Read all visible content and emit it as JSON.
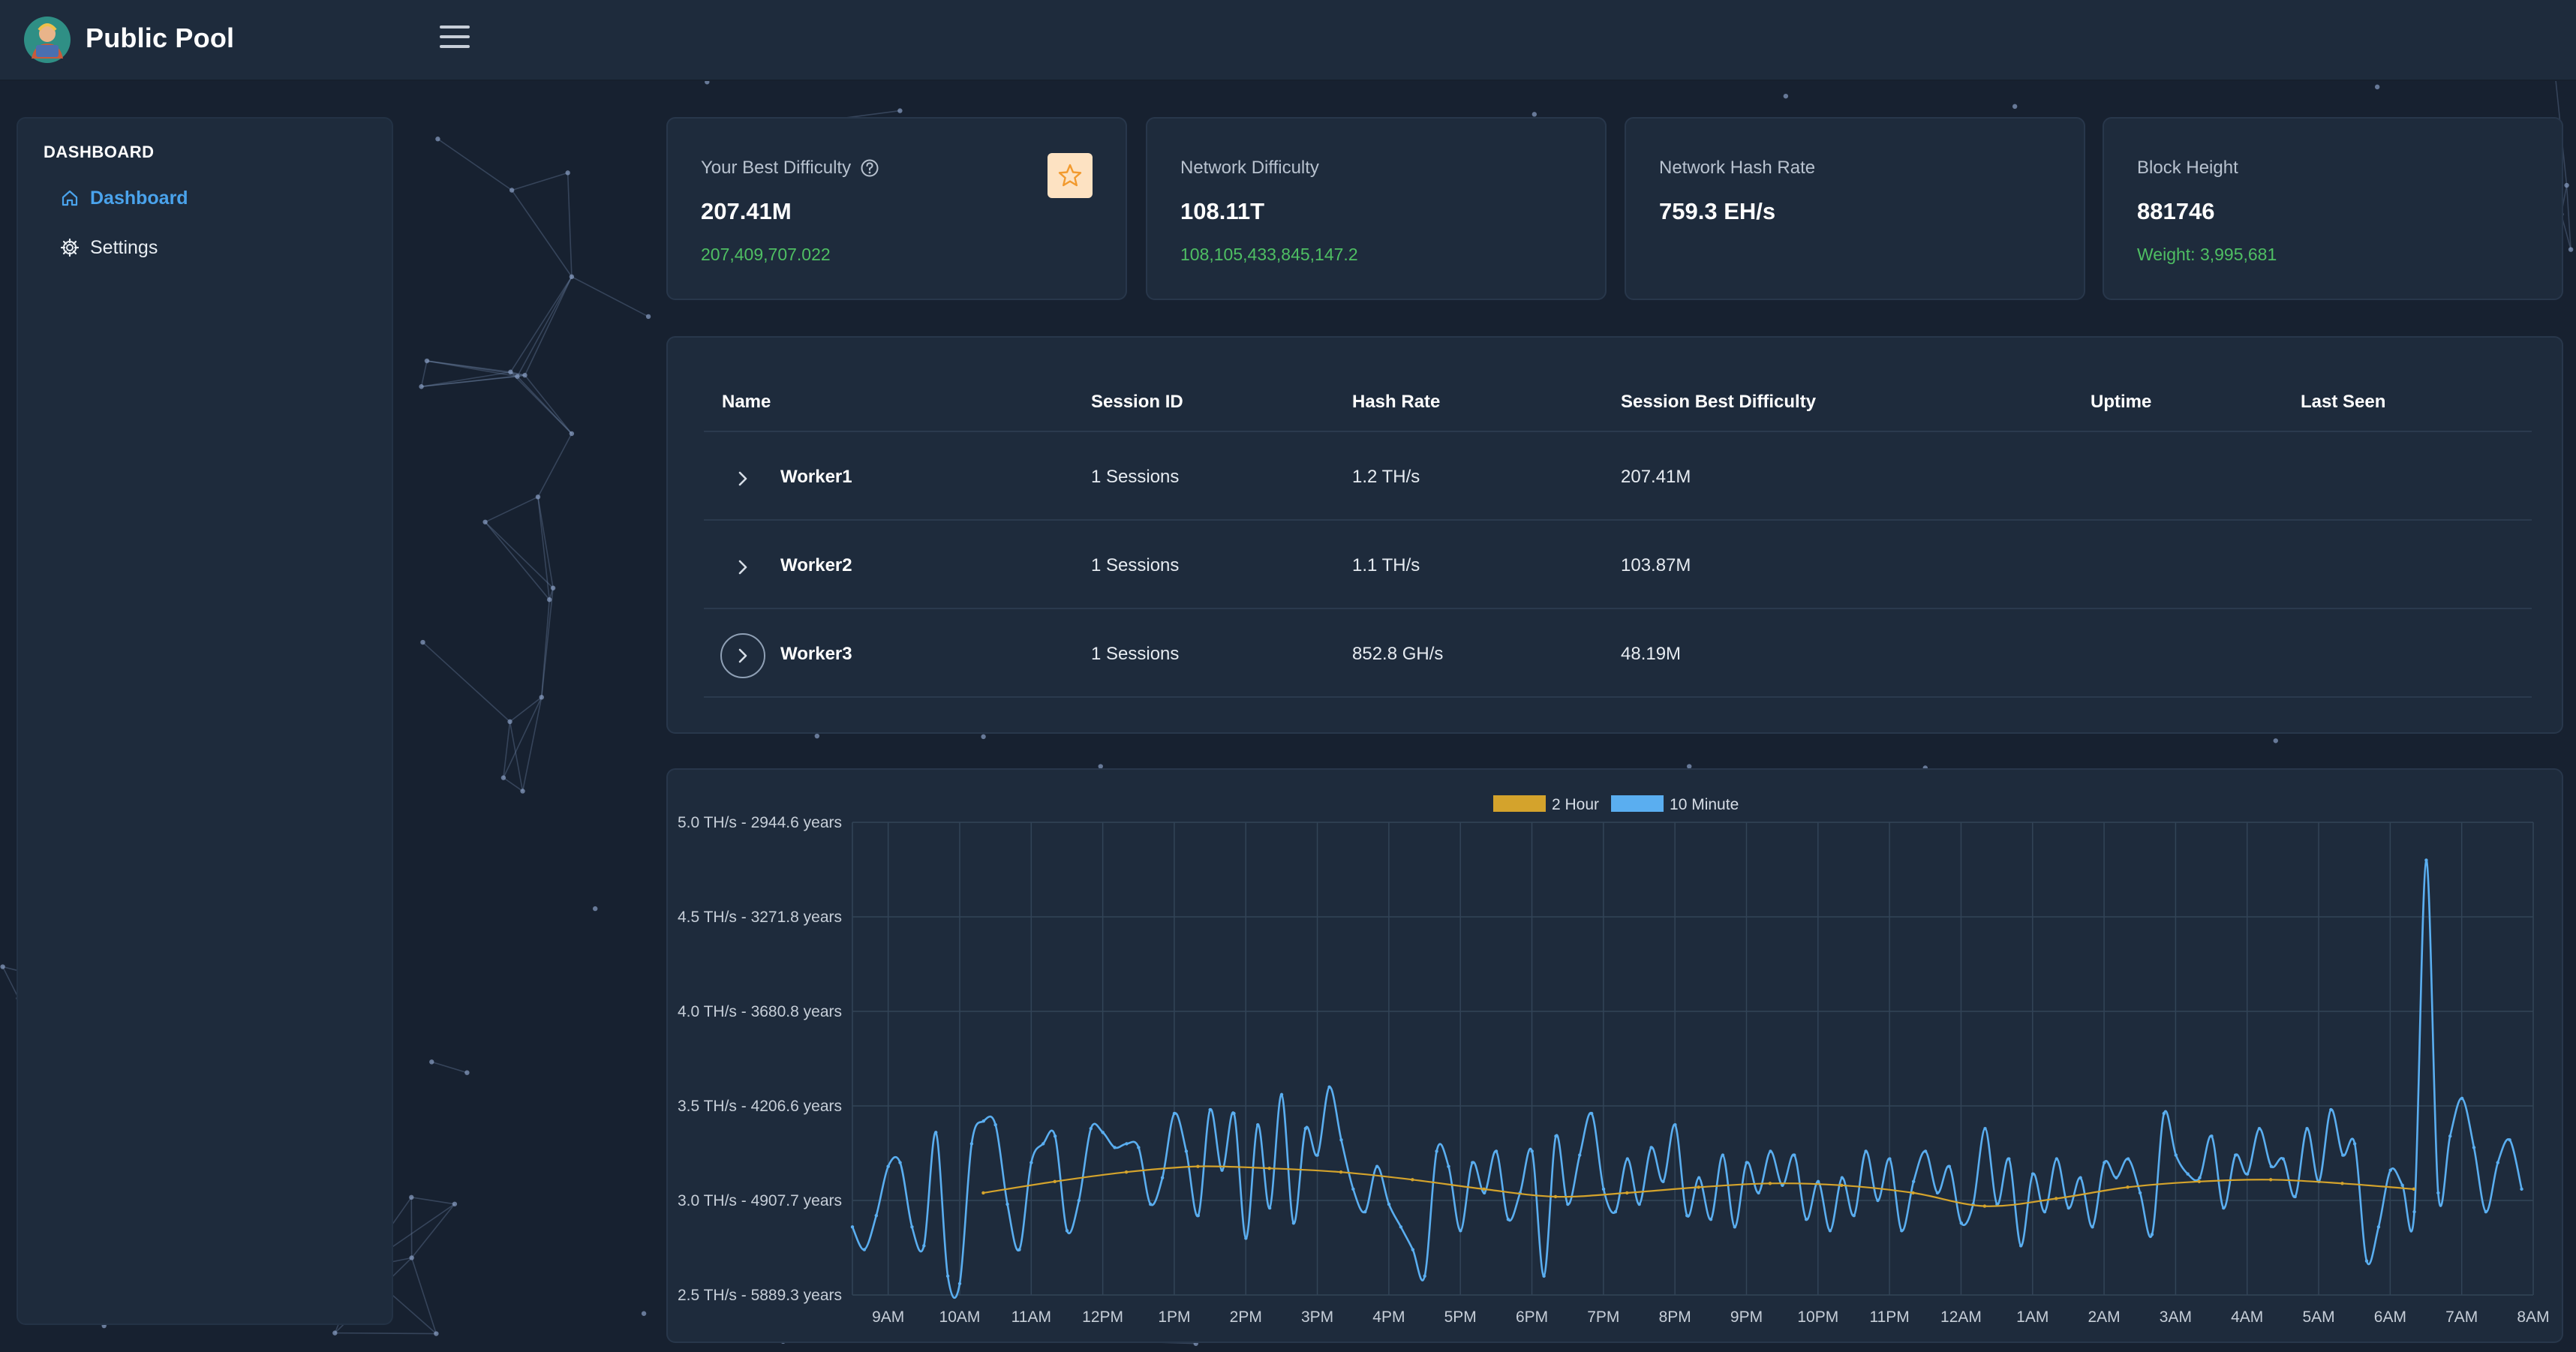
{
  "app": {
    "title": "Public Pool",
    "logo_icon": "public-pool-logo"
  },
  "sidebar": {
    "heading": "DASHBOARD",
    "items": [
      {
        "label": "Dashboard",
        "icon": "home-icon",
        "active": true
      },
      {
        "label": "Settings",
        "icon": "gear-icon",
        "active": false
      }
    ]
  },
  "cards": [
    {
      "label": "Your Best Difficulty",
      "value": "207.41M",
      "sub": "207,409,707.022",
      "has_help": true,
      "has_star": true
    },
    {
      "label": "Network Difficulty",
      "value": "108.11T",
      "sub": "108,105,433,845,147.2"
    },
    {
      "label": "Network Hash Rate",
      "value": "759.3 EH/s",
      "sub": ""
    },
    {
      "label": "Block Height",
      "value": "881746",
      "sub": "Weight: 3,995,681"
    }
  ],
  "workers_table": {
    "columns": [
      "Name",
      "Session ID",
      "Hash Rate",
      "Session Best Difficulty",
      "Uptime",
      "Last Seen"
    ],
    "rows": [
      {
        "name": "Worker1",
        "sessions": "1 Sessions",
        "hash_rate": "1.2 TH/s",
        "best_difficulty": "207.41M",
        "uptime": "",
        "last_seen": ""
      },
      {
        "name": "Worker2",
        "sessions": "1 Sessions",
        "hash_rate": "1.1 TH/s",
        "best_difficulty": "103.87M",
        "uptime": "",
        "last_seen": ""
      },
      {
        "name": "Worker3",
        "sessions": "1 Sessions",
        "hash_rate": "852.8 GH/s",
        "best_difficulty": "48.19M",
        "uptime": "",
        "last_seen": ""
      }
    ]
  },
  "colors": {
    "accent": "#4aa3ec",
    "positive": "#4fbf63",
    "series_2h": "#d4a32c",
    "series_10m": "#5aaef0",
    "star_bg": "#fde2c2",
    "star_fg": "#f29a2e"
  },
  "chart_data": {
    "type": "line",
    "legend_position": "top",
    "grid": true,
    "x_ticks": [
      "9AM",
      "10AM",
      "11AM",
      "12PM",
      "1PM",
      "2PM",
      "3PM",
      "4PM",
      "5PM",
      "6PM",
      "7PM",
      "8PM",
      "9PM",
      "10PM",
      "11PM",
      "12AM",
      "1AM",
      "2AM",
      "3AM",
      "4AM",
      "5AM",
      "6AM",
      "7AM",
      "8AM"
    ],
    "y_ticks": [
      {
        "value": 5.0,
        "label": "5.0 TH/s - 2944.6 years"
      },
      {
        "value": 4.5,
        "label": "4.5 TH/s - 3271.8 years"
      },
      {
        "value": 4.0,
        "label": "4.0 TH/s - 3680.8 years"
      },
      {
        "value": 3.5,
        "label": "3.5 TH/s - 4206.6 years"
      },
      {
        "value": 3.0,
        "label": "3.0 TH/s - 4907.7 years"
      },
      {
        "value": 2.5,
        "label": "2.5 TH/s - 5889.3 years"
      }
    ],
    "ylim": [
      2.5,
      5.0
    ],
    "x_hours": [
      8.5,
      32.0
    ],
    "series": [
      {
        "name": "2 Hour",
        "x": [
          10.33,
          11.33,
          12.33,
          13.33,
          14.33,
          15.33,
          16.33,
          17.33,
          18.33,
          19.33,
          20.33,
          21.33,
          22.33,
          23.33,
          24.33,
          25.33,
          26.33,
          27.33,
          28.33,
          29.33,
          30.33
        ],
        "values": [
          3.04,
          3.1,
          3.15,
          3.18,
          3.17,
          3.15,
          3.11,
          3.06,
          3.02,
          3.04,
          3.07,
          3.09,
          3.08,
          3.04,
          2.97,
          3.01,
          3.07,
          3.1,
          3.11,
          3.09,
          3.06
        ]
      },
      {
        "name": "10 Minute",
        "x_start": 8.5,
        "x_step": 0.1667,
        "values": [
          2.86,
          2.74,
          2.92,
          3.18,
          3.2,
          2.86,
          2.76,
          3.36,
          2.6,
          2.56,
          3.3,
          3.42,
          3.4,
          2.98,
          2.74,
          3.2,
          3.3,
          3.34,
          2.84,
          3.0,
          3.38,
          3.36,
          3.28,
          3.3,
          3.28,
          2.98,
          3.12,
          3.46,
          3.26,
          2.92,
          3.48,
          3.16,
          3.46,
          2.8,
          3.4,
          2.96,
          3.56,
          2.88,
          3.38,
          3.24,
          3.6,
          3.32,
          3.06,
          2.94,
          3.18,
          2.98,
          2.86,
          2.74,
          2.6,
          3.26,
          3.18,
          2.84,
          3.2,
          3.04,
          3.26,
          2.9,
          3.04,
          3.26,
          2.6,
          3.34,
          2.98,
          3.24,
          3.46,
          3.06,
          2.94,
          3.22,
          2.98,
          3.28,
          3.1,
          3.4,
          2.92,
          3.12,
          2.9,
          3.24,
          2.86,
          3.2,
          3.04,
          3.26,
          3.08,
          3.24,
          2.9,
          3.1,
          2.84,
          3.12,
          2.92,
          3.26,
          3.0,
          3.22,
          2.84,
          3.1,
          3.26,
          3.04,
          3.18,
          2.88,
          2.98,
          3.38,
          2.98,
          3.22,
          2.76,
          3.14,
          2.94,
          3.22,
          2.96,
          3.12,
          2.86,
          3.2,
          3.12,
          3.22,
          3.04,
          2.82,
          3.46,
          3.24,
          3.14,
          3.12,
          3.34,
          2.96,
          3.24,
          3.14,
          3.38,
          3.18,
          3.22,
          3.02,
          3.38,
          3.1,
          3.48,
          3.24,
          3.3,
          2.68,
          2.86,
          3.16,
          3.08,
          2.94,
          4.8,
          3.04,
          3.34,
          3.54,
          3.28,
          2.94,
          3.2,
          3.32,
          3.06
        ]
      }
    ]
  }
}
